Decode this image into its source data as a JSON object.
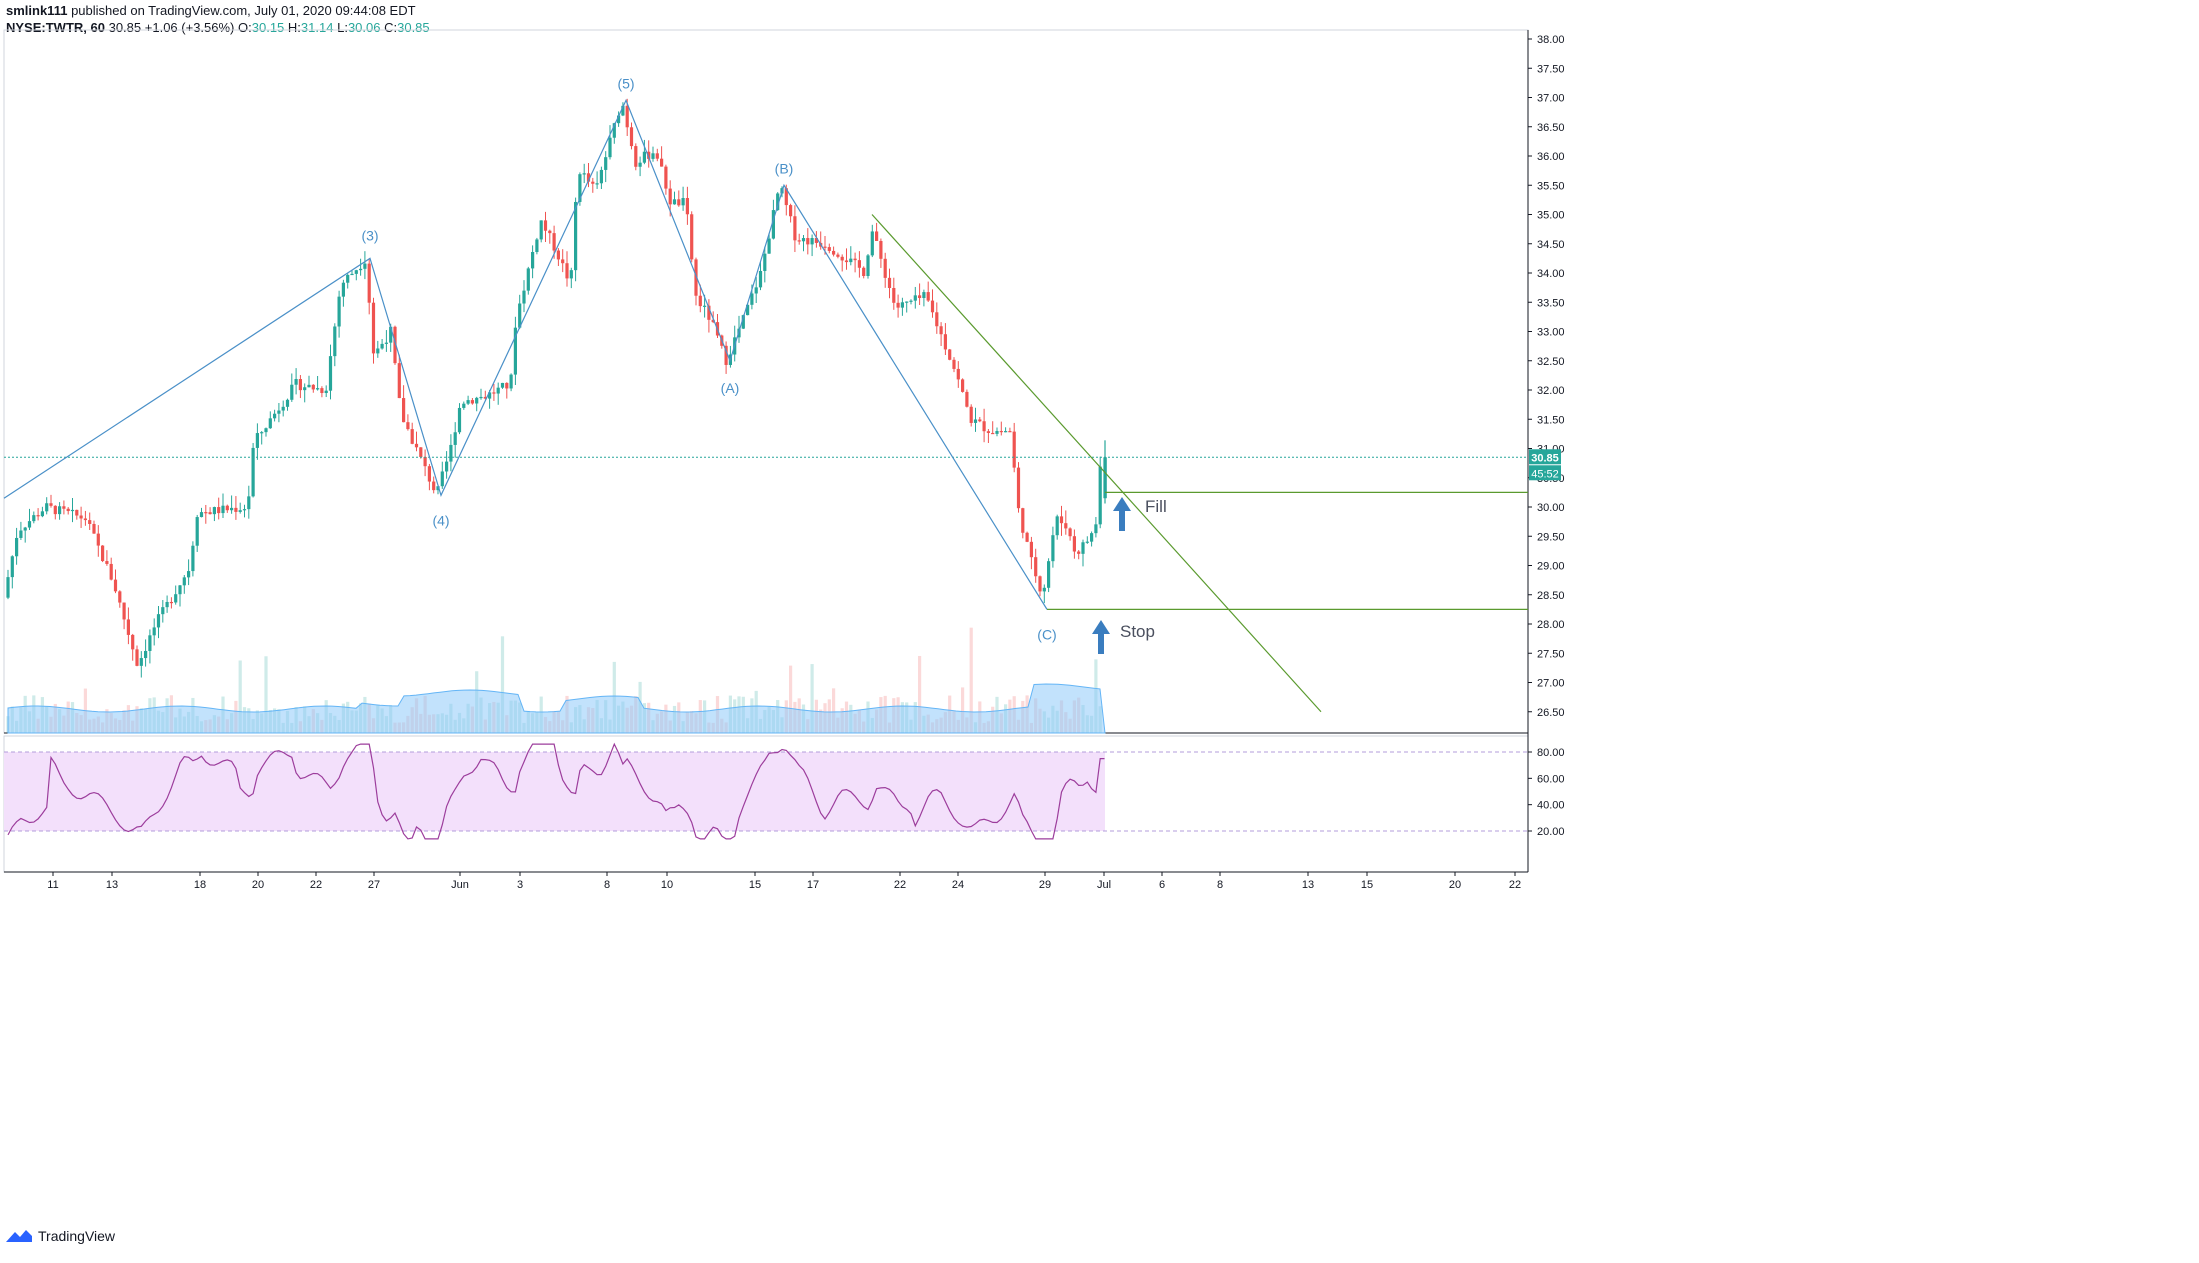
{
  "header": {
    "user": "smlink111",
    "published_text": "published on TradingView.com, July 01, 2020 09:44:08 EDT",
    "symbol": "NYSE:TWTR, 60",
    "last": "30.85",
    "change": "+1.06 (+3.56%)",
    "open_label": "O:",
    "open": "30.15",
    "high_label": "H:",
    "high": "31.14",
    "low_label": "L:",
    "low": "30.06",
    "close_label": "C:",
    "close": "30.85"
  },
  "footer": {
    "brand": "TradingView"
  },
  "colors": {
    "up": "#26a69a",
    "down": "#ef5350",
    "wave_line": "#4a90c8",
    "trend_line": "#5a9a2e",
    "volume_ma": "#90caf9",
    "rsi_line": "#9c3d9c",
    "rsi_band": "#f3e0fb",
    "arrow": "#3a7dbf",
    "price_label_bg": "#26a69a"
  },
  "chart_data": {
    "type": "candlestick",
    "symbol": "NYSE:TWTR",
    "interval": "60",
    "ylim": [
      26.5,
      38.0
    ],
    "y_ticks": [
      "38.00",
      "37.50",
      "37.00",
      "36.50",
      "36.00",
      "35.50",
      "35.00",
      "34.50",
      "34.00",
      "33.50",
      "33.00",
      "32.50",
      "32.00",
      "31.50",
      "31.00",
      "30.50",
      "30.00",
      "29.50",
      "29.00",
      "28.50",
      "28.00",
      "27.50",
      "27.00",
      "26.50"
    ],
    "x_ticks": [
      "11",
      "13",
      "18",
      "20",
      "22",
      "27",
      "Jun",
      "3",
      "8",
      "10",
      "15",
      "17",
      "22",
      "24",
      "29",
      "Jul",
      "6",
      "8",
      "13",
      "15",
      "20",
      "22"
    ],
    "current_price": "30.85",
    "countdown": "45:52",
    "wave_points": [
      {
        "label": "",
        "price": 30.15
      },
      {
        "label": "(3)",
        "price": 34.25
      },
      {
        "label": "(4)",
        "price": 30.2
      },
      {
        "label": "(5)",
        "price": 36.95
      },
      {
        "label": "(A)",
        "price": 32.5
      },
      {
        "label": "(B)",
        "price": 35.5
      },
      {
        "label": "(C)",
        "price": 28.25
      }
    ],
    "horizontal_levels": [
      {
        "name": "fill",
        "label": "Fill",
        "price": 30.25
      },
      {
        "name": "stop",
        "label": "Stop",
        "price": 28.25
      }
    ],
    "trendline": {
      "start_price": 35.0,
      "end_price": 26.5
    },
    "rsi": {
      "upper": 80,
      "lower": 20,
      "ticks": [
        "80.00",
        "60.00",
        "40.00",
        "20.00"
      ],
      "last": 75
    }
  }
}
